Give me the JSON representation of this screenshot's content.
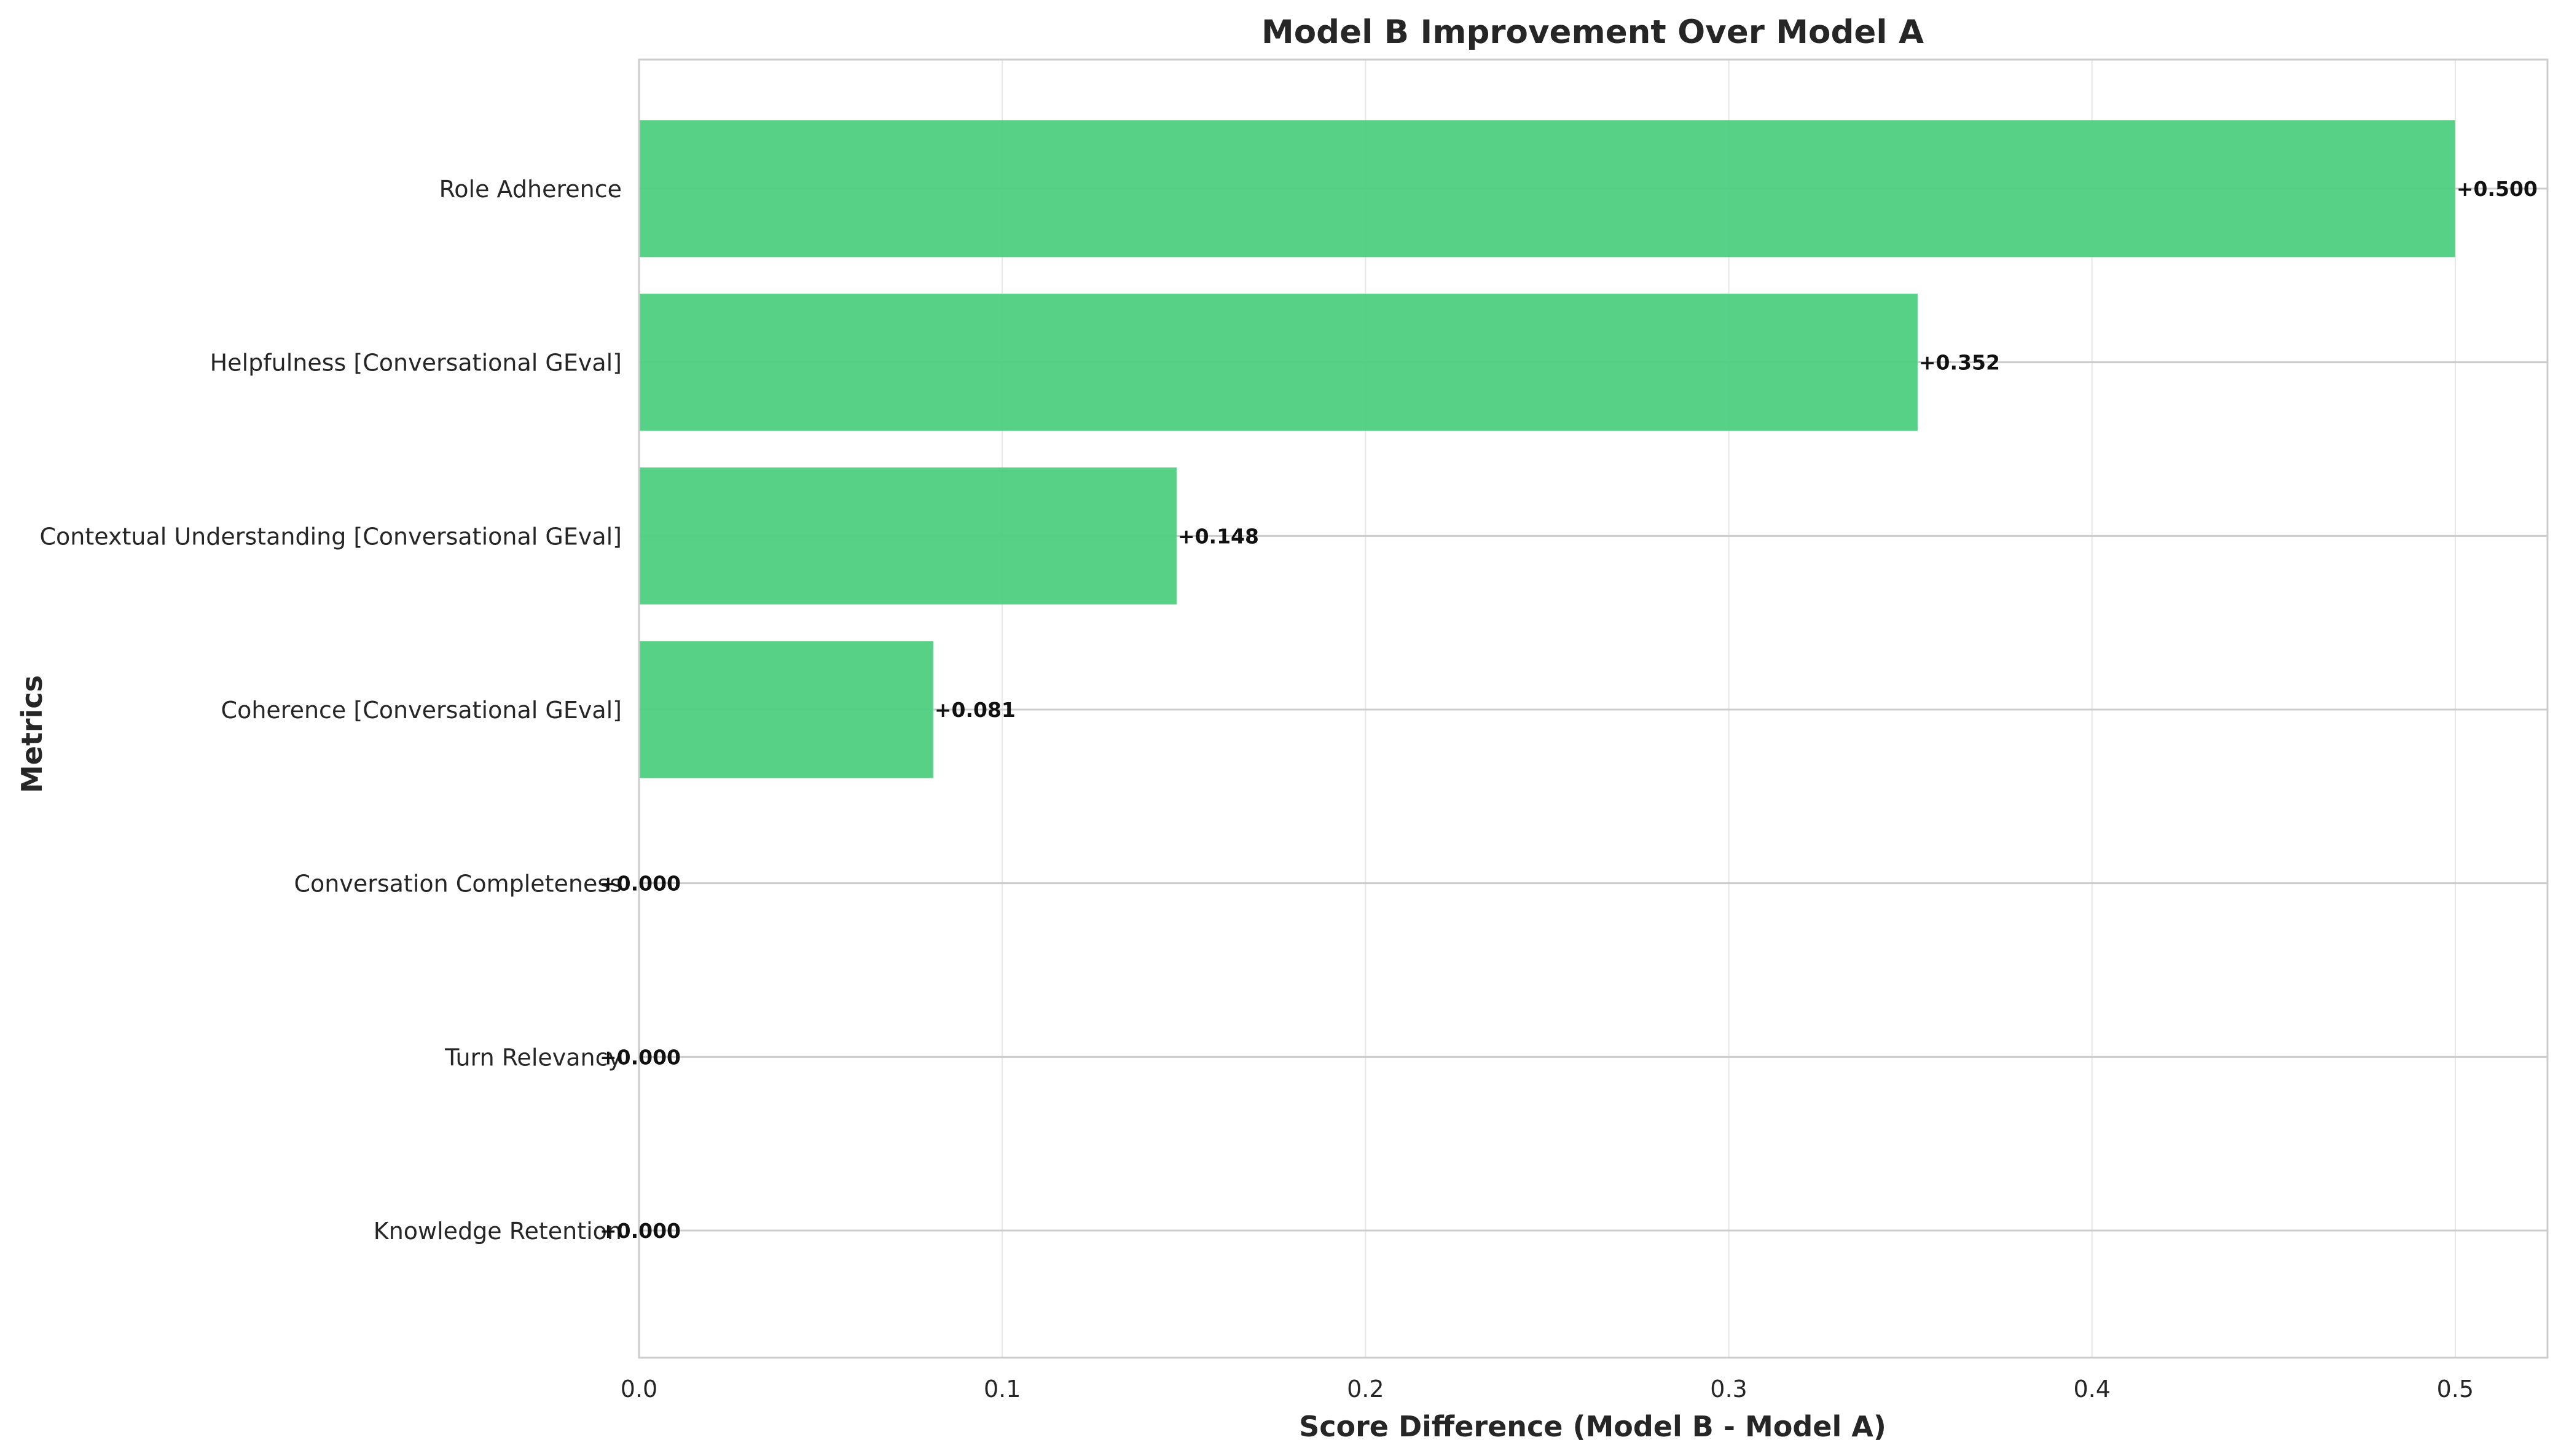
{
  "chart_data": {
    "type": "bar",
    "orientation": "horizontal",
    "title": "Model B Improvement Over Model A",
    "xlabel": "Score Difference (Model B - Model A)",
    "ylabel": "Metrics",
    "categories": [
      "Role Adherence",
      "Helpfulness [Conversational GEval]",
      "Contextual Understanding [Conversational GEval]",
      "Coherence [Conversational GEval]",
      "Conversation Completeness",
      "Turn Relevancy",
      "Knowledge Retention"
    ],
    "values": [
      0.5,
      0.352,
      0.148,
      0.081,
      0.0,
      0.0,
      0.0
    ],
    "value_labels": [
      "+0.500",
      "+0.352",
      "+0.148",
      "+0.081",
      "+0.000",
      "+0.000",
      "+0.000"
    ],
    "xlim": [
      0,
      0.5254
    ],
    "xticks": [
      0.0,
      0.1,
      0.2,
      0.3,
      0.4,
      0.5
    ],
    "xtick_labels": [
      "0.0",
      "0.1",
      "0.2",
      "0.3",
      "0.4",
      "0.5"
    ],
    "grid": true,
    "legend": "none",
    "bar_color": "#4ecf7f"
  }
}
